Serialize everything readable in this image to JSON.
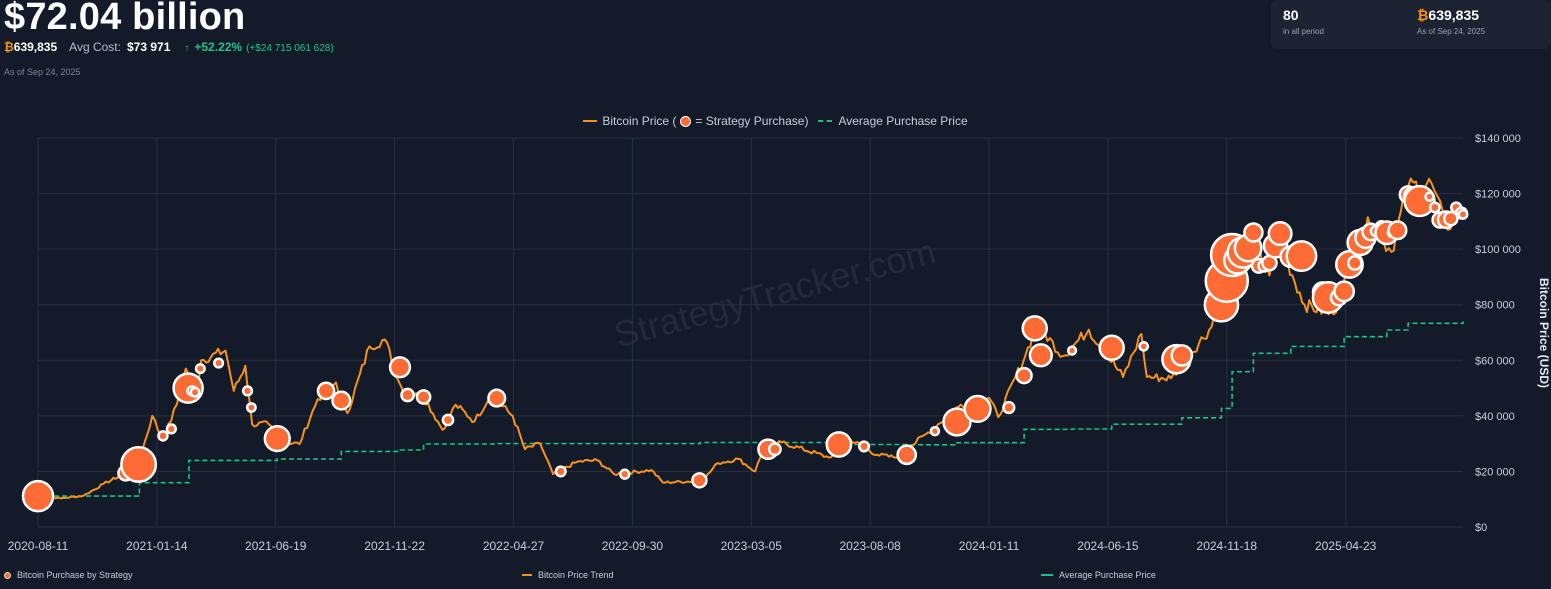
{
  "header": {
    "value_title": "$72.04 billion",
    "btc_symbol": "₿",
    "holdings": "639,835",
    "avg_cost_label": "Avg Cost:",
    "avg_cost_value": "$73 971",
    "gain_pct": "+52.22%",
    "gain_abs": "(+$24 715 061 628)",
    "as_of": "As of Sep 24, 2025"
  },
  "summary_card": {
    "purchases_count": "80",
    "purchases_caption": "in all period",
    "btc_symbol": "₿",
    "holdings": "639,835",
    "holdings_caption": "As of Sep 24, 2025"
  },
  "colors": {
    "background": "#131a29",
    "price_line": "#f7931a",
    "purchase_dot": "#ff6b35",
    "avg_line": "#1fbf8c",
    "gain": "#25c18b",
    "grid": "#283043"
  },
  "legend_top": {
    "price_label": "Bitcoin Price (",
    "purchase_label": "= Strategy Purchase)",
    "avg_label": "Average Purchase Price"
  },
  "legend_bottom": {
    "purchase": "Bitcoin Purchase by Strategy",
    "trend": "Bitcoin Price Trend",
    "avg": "Average Purchase Price"
  },
  "watermark": "StrategyTracker.com",
  "chart_data": {
    "type": "line",
    "ylabel": "Bitcoin Price (USD)",
    "ylim": [
      0,
      140000
    ],
    "y_ticks": [
      0,
      20000,
      40000,
      60000,
      80000,
      100000,
      120000,
      140000
    ],
    "y_tick_labels": [
      "$0",
      "$20 000",
      "$40 000",
      "$60 000",
      "$80 000",
      "$100 000",
      "$120 000",
      "$140 000"
    ],
    "xlim": [
      "2020-08-11",
      "2025-09-24"
    ],
    "x_ticks": [
      "2020-08-11",
      "2021-01-14",
      "2021-06-19",
      "2021-11-22",
      "2022-04-27",
      "2022-09-30",
      "2023-03-05",
      "2023-08-08",
      "2024-01-11",
      "2024-06-15",
      "2024-11-18",
      "2025-04-23"
    ],
    "grid": true,
    "series": [
      {
        "name": "Bitcoin Price",
        "points": [
          [
            "2020-08-11",
            11400
          ],
          [
            "2020-09-10",
            10300
          ],
          [
            "2020-10-10",
            11300
          ],
          [
            "2020-11-05",
            15500
          ],
          [
            "2020-12-01",
            19000
          ],
          [
            "2020-12-21",
            23000
          ],
          [
            "2021-01-08",
            40000
          ],
          [
            "2021-01-22",
            31000
          ],
          [
            "2021-02-09",
            44000
          ],
          [
            "2021-02-21",
            57000
          ],
          [
            "2021-03-08",
            50000
          ],
          [
            "2021-03-13",
            60000
          ],
          [
            "2021-04-14",
            63500
          ],
          [
            "2021-04-25",
            49000
          ],
          [
            "2021-05-10",
            58000
          ],
          [
            "2021-05-19",
            37000
          ],
          [
            "2021-06-10",
            37000
          ],
          [
            "2021-06-22",
            31000
          ],
          [
            "2021-07-20",
            29800
          ],
          [
            "2021-08-13",
            46000
          ],
          [
            "2021-09-06",
            52000
          ],
          [
            "2021-09-21",
            41000
          ],
          [
            "2021-10-20",
            65000
          ],
          [
            "2021-11-09",
            67500
          ],
          [
            "2021-12-04",
            48000
          ],
          [
            "2021-12-30",
            47000
          ],
          [
            "2022-01-24",
            35000
          ],
          [
            "2022-02-10",
            44000
          ],
          [
            "2022-03-07",
            38000
          ],
          [
            "2022-03-28",
            47500
          ],
          [
            "2022-04-26",
            40000
          ],
          [
            "2022-05-12",
            28000
          ],
          [
            "2022-06-01",
            30000
          ],
          [
            "2022-06-18",
            19000
          ],
          [
            "2022-07-20",
            23500
          ],
          [
            "2022-08-15",
            24000
          ],
          [
            "2022-09-06",
            19000
          ],
          [
            "2022-10-25",
            20500
          ],
          [
            "2022-11-09",
            16000
          ],
          [
            "2022-12-31",
            16600
          ],
          [
            "2023-01-20",
            23000
          ],
          [
            "2023-02-16",
            24500
          ],
          [
            "2023-03-10",
            20000
          ],
          [
            "2023-03-21",
            28000
          ],
          [
            "2023-04-14",
            30500
          ],
          [
            "2023-06-15",
            25000
          ],
          [
            "2023-07-13",
            31500
          ],
          [
            "2023-08-17",
            26000
          ],
          [
            "2023-09-11",
            25000
          ],
          [
            "2023-10-23",
            34000
          ],
          [
            "2023-12-05",
            44000
          ],
          [
            "2024-01-11",
            46500
          ],
          [
            "2024-01-23",
            39500
          ],
          [
            "2024-02-28",
            62000
          ],
          [
            "2024-03-14",
            73000
          ],
          [
            "2024-04-17",
            61500
          ],
          [
            "2024-05-21",
            71000
          ],
          [
            "2024-07-05",
            54000
          ],
          [
            "2024-07-29",
            69500
          ],
          [
            "2024-08-05",
            54000
          ],
          [
            "2024-09-06",
            53500
          ],
          [
            "2024-10-29",
            72000
          ],
          [
            "2024-11-13",
            90000
          ],
          [
            "2024-12-17",
            107000
          ],
          [
            "2025-01-13",
            90500
          ],
          [
            "2025-01-21",
            106000
          ],
          [
            "2025-02-28",
            80000
          ],
          [
            "2025-04-07",
            76500
          ],
          [
            "2025-05-22",
            111500
          ],
          [
            "2025-06-22",
            99000
          ],
          [
            "2025-07-14",
            122500
          ],
          [
            "2025-08-14",
            123500
          ],
          [
            "2025-09-01",
            108000
          ],
          [
            "2025-09-24",
            113000
          ]
        ]
      },
      {
        "name": "Average Purchase Price",
        "points": [
          [
            "2020-08-11",
            11110
          ],
          [
            "2020-12-21",
            11110
          ],
          [
            "2020-12-22",
            15960
          ],
          [
            "2021-02-24",
            15960
          ],
          [
            "2021-02-25",
            23980
          ],
          [
            "2021-06-21",
            24450
          ],
          [
            "2021-09-13",
            27200
          ],
          [
            "2021-11-29",
            27710
          ],
          [
            "2021-12-30",
            29860
          ],
          [
            "2022-04-05",
            30000
          ],
          [
            "2022-12-28",
            30400
          ],
          [
            "2023-06-28",
            29700
          ],
          [
            "2023-09-25",
            29580
          ],
          [
            "2023-11-30",
            30330
          ],
          [
            "2024-02-26",
            35160
          ],
          [
            "2024-04-29",
            35280
          ],
          [
            "2024-06-20",
            37000
          ],
          [
            "2024-09-20",
            39300
          ],
          [
            "2024-11-11",
            42700
          ],
          [
            "2024-11-25",
            55900
          ],
          [
            "2024-12-23",
            62500
          ],
          [
            "2025-02-10",
            65000
          ],
          [
            "2025-04-21",
            68500
          ],
          [
            "2025-06-16",
            70900
          ],
          [
            "2025-07-14",
            73300
          ],
          [
            "2025-09-24",
            73971
          ]
        ]
      }
    ],
    "purchases": [
      {
        "date": "2020-08-11",
        "price": 11110,
        "btc": 21454
      },
      {
        "date": "2020-12-04",
        "price": 19400,
        "btc": 2574
      },
      {
        "date": "2020-12-21",
        "price": 22500,
        "btc": 29646
      },
      {
        "date": "2021-01-22",
        "price": 32800,
        "btc": 314
      },
      {
        "date": "2021-02-02",
        "price": 35300,
        "btc": 295
      },
      {
        "date": "2021-02-24",
        "price": 50000,
        "btc": 19452
      },
      {
        "date": "2021-03-01",
        "price": 49000,
        "btc": 328
      },
      {
        "date": "2021-03-05",
        "price": 48500,
        "btc": 205
      },
      {
        "date": "2021-03-12",
        "price": 57000,
        "btc": 262
      },
      {
        "date": "2021-04-05",
        "price": 59000,
        "btc": 253
      },
      {
        "date": "2021-05-13",
        "price": 49000,
        "btc": 271
      },
      {
        "date": "2021-05-18",
        "price": 43000,
        "btc": 229
      },
      {
        "date": "2021-06-21",
        "price": 31800,
        "btc": 13005
      },
      {
        "date": "2021-08-24",
        "price": 49000,
        "btc": 3907
      },
      {
        "date": "2021-09-13",
        "price": 45500,
        "btc": 5050
      },
      {
        "date": "2021-11-29",
        "price": 57500,
        "btc": 7002
      },
      {
        "date": "2021-12-09",
        "price": 47500,
        "btc": 1434
      },
      {
        "date": "2021-12-30",
        "price": 46800,
        "btc": 1914
      },
      {
        "date": "2022-01-31",
        "price": 38500,
        "btc": 660
      },
      {
        "date": "2022-04-05",
        "price": 46400,
        "btc": 4167
      },
      {
        "date": "2022-06-28",
        "price": 20000,
        "btc": 480
      },
      {
        "date": "2022-09-20",
        "price": 19000,
        "btc": 301
      },
      {
        "date": "2022-12-27",
        "price": 16800,
        "btc": 2395
      },
      {
        "date": "2023-03-27",
        "price": 28000,
        "btc": 6455
      },
      {
        "date": "2023-04-05",
        "price": 28000,
        "btc": 1045
      },
      {
        "date": "2023-06-28",
        "price": 29700,
        "btc": 12333
      },
      {
        "date": "2023-07-31",
        "price": 29000,
        "btc": 467
      },
      {
        "date": "2023-09-25",
        "price": 26000,
        "btc": 5445
      },
      {
        "date": "2023-11-01",
        "price": 34500,
        "btc": 155
      },
      {
        "date": "2023-11-30",
        "price": 37800,
        "btc": 16130
      },
      {
        "date": "2023-12-27",
        "price": 42500,
        "btc": 14620
      },
      {
        "date": "2024-02-06",
        "price": 43000,
        "btc": 850
      },
      {
        "date": "2024-02-26",
        "price": 54500,
        "btc": 3000
      },
      {
        "date": "2024-03-11",
        "price": 71500,
        "btc": 12000
      },
      {
        "date": "2024-03-19",
        "price": 61800,
        "btc": 9245
      },
      {
        "date": "2024-04-29",
        "price": 63500,
        "btc": 122
      },
      {
        "date": "2024-06-20",
        "price": 64500,
        "btc": 11931
      },
      {
        "date": "2024-08-01",
        "price": 65000,
        "btc": 169
      },
      {
        "date": "2024-09-13",
        "price": 60400,
        "btc": 18300
      },
      {
        "date": "2024-09-20",
        "price": 61750,
        "btc": 7420
      },
      {
        "date": "2024-11-11",
        "price": 80000,
        "btc": 27200
      },
      {
        "date": "2024-11-18",
        "price": 88600,
        "btc": 51780
      },
      {
        "date": "2024-11-25",
        "price": 97900,
        "btc": 55500
      },
      {
        "date": "2024-12-02",
        "price": 96000,
        "btc": 15400
      },
      {
        "date": "2024-12-09",
        "price": 98800,
        "btc": 21550
      },
      {
        "date": "2024-12-16",
        "price": 100400,
        "btc": 15350
      },
      {
        "date": "2024-12-23",
        "price": 106000,
        "btc": 5262
      },
      {
        "date": "2024-12-30",
        "price": 94000,
        "btc": 2138
      },
      {
        "date": "2025-01-06",
        "price": 94000,
        "btc": 1070
      },
      {
        "date": "2025-01-13",
        "price": 95000,
        "btc": 2530
      },
      {
        "date": "2025-01-21",
        "price": 101200,
        "btc": 11000
      },
      {
        "date": "2025-01-27",
        "price": 105600,
        "btc": 10107
      },
      {
        "date": "2025-02-10",
        "price": 97300,
        "btc": 7633
      },
      {
        "date": "2025-02-24",
        "price": 97500,
        "btc": 20356
      },
      {
        "date": "2025-03-17",
        "price": 82900,
        "btc": 130
      },
      {
        "date": "2025-03-24",
        "price": 84500,
        "btc": 6911
      },
      {
        "date": "2025-03-31",
        "price": 82600,
        "btc": 22048
      },
      {
        "date": "2025-04-14",
        "price": 82600,
        "btc": 3459
      },
      {
        "date": "2025-04-21",
        "price": 84800,
        "btc": 6556
      },
      {
        "date": "2025-04-28",
        "price": 94500,
        "btc": 15355
      },
      {
        "date": "2025-05-05",
        "price": 95000,
        "btc": 1895
      },
      {
        "date": "2025-05-12",
        "price": 102400,
        "btc": 13390
      },
      {
        "date": "2025-05-19",
        "price": 104100,
        "btc": 7390
      },
      {
        "date": "2025-05-26",
        "price": 106200,
        "btc": 4020
      },
      {
        "date": "2025-06-02",
        "price": 106500,
        "btc": 705
      },
      {
        "date": "2025-06-09",
        "price": 108000,
        "btc": 1045
      },
      {
        "date": "2025-06-16",
        "price": 105900,
        "btc": 10100
      },
      {
        "date": "2025-06-23",
        "price": 105900,
        "btc": 245
      },
      {
        "date": "2025-06-30",
        "price": 106800,
        "btc": 4980
      },
      {
        "date": "2025-07-14",
        "price": 119600,
        "btc": 4225
      },
      {
        "date": "2025-07-21",
        "price": 118900,
        "btc": 6220
      },
      {
        "date": "2025-07-29",
        "price": 117300,
        "btc": 21021
      },
      {
        "date": "2025-08-11",
        "price": 118900,
        "btc": 155
      },
      {
        "date": "2025-08-18",
        "price": 115000,
        "btc": 430
      },
      {
        "date": "2025-08-25",
        "price": 110500,
        "btc": 3081
      },
      {
        "date": "2025-09-02",
        "price": 110600,
        "btc": 4048
      },
      {
        "date": "2025-09-08",
        "price": 111000,
        "btc": 1955
      },
      {
        "date": "2025-09-15",
        "price": 115000,
        "btc": 525
      },
      {
        "date": "2025-09-22",
        "price": 113000,
        "btc": 850
      },
      {
        "date": "2025-09-24",
        "price": 112500,
        "btc": 200
      }
    ]
  }
}
